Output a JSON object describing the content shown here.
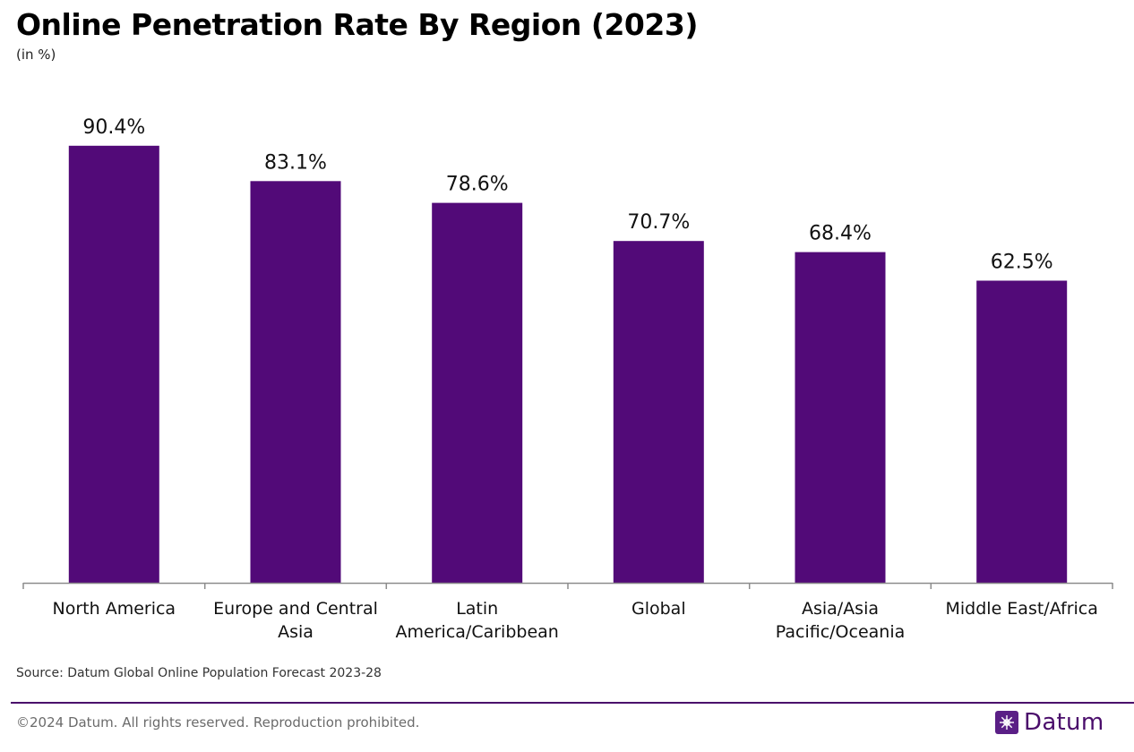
{
  "chart_data": {
    "type": "bar",
    "title": "Online Penetration Rate By Region (2023)",
    "subtitle": "(in %)",
    "categories": [
      [
        "North America"
      ],
      [
        "Europe and Central",
        "Asia"
      ],
      [
        "Latin",
        "America/Caribbean"
      ],
      [
        "Global"
      ],
      [
        "Asia/Asia",
        "Pacific/Oceania"
      ],
      [
        "Middle East/Africa"
      ]
    ],
    "values": [
      90.4,
      83.1,
      78.6,
      70.7,
      68.4,
      62.5
    ],
    "value_labels": [
      "90.4%",
      "83.1%",
      "78.6%",
      "70.7%",
      "68.4%",
      "62.5%"
    ],
    "ylim": [
      0,
      100
    ],
    "xlabel": "",
    "ylabel": "",
    "grid": false,
    "bar_color": "#520a78"
  },
  "footer": {
    "source": "Source: Datum Global Online Population Forecast 2023-28",
    "copyright": "©2024 Datum. All rights reserved. Reproduction prohibited.",
    "brand": "Datum"
  },
  "icons": {
    "brand_logo": "datum-logo-icon"
  },
  "colors": {
    "accent": "#4a0d6b",
    "logo": "#5a1f86"
  }
}
